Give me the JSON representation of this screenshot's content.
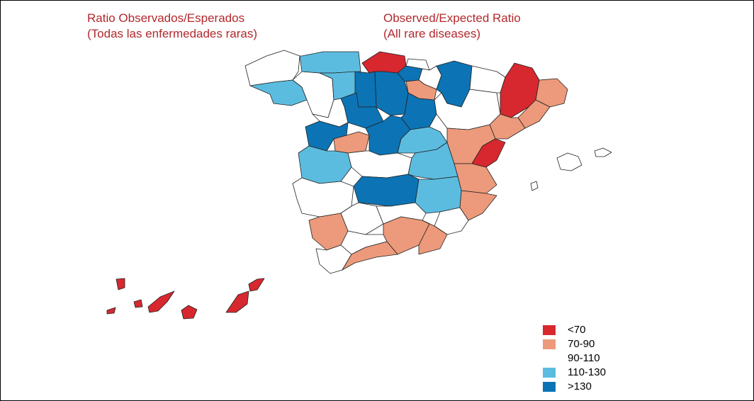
{
  "titles": {
    "es": [
      "Ratio Observados/Esperados",
      "(Todas las enfermedades raras)"
    ],
    "en": [
      "Observed/Expected Ratio",
      "(All rare diseases)"
    ]
  },
  "legend": [
    {
      "label": "<70",
      "color": "#d6282e"
    },
    {
      "label": "70-90",
      "color": "#ec9a7b"
    },
    {
      "label": "90-110",
      "color": "#ffffff"
    },
    {
      "label": "110-130",
      "color": "#5cbce0"
    },
    {
      "label": ">130",
      "color": "#0c73b5"
    }
  ]
}
